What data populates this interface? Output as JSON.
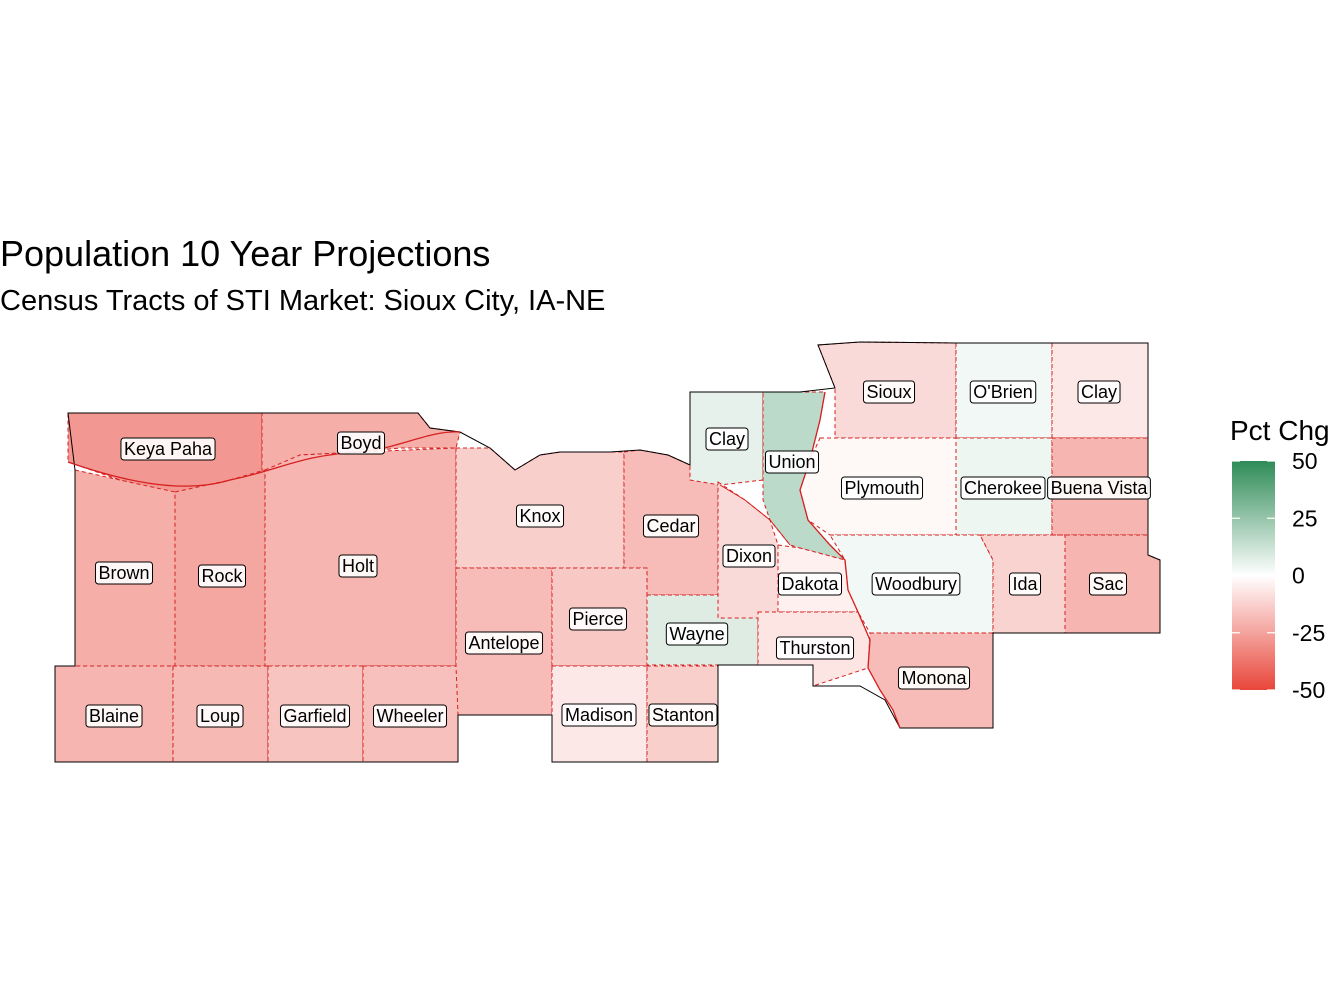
{
  "title": "Population 10 Year Projections",
  "subtitle": "Census Tracts of STI Market: Sioux City, IA-NE",
  "legend": {
    "title": "Pct Chg",
    "breaks": [
      50,
      25,
      0,
      -25,
      -50
    ],
    "colors": {
      "high": "#2e8b57",
      "mid": "#ffffff",
      "low": "#e8463a"
    }
  },
  "counties": [
    {
      "name": "Keya Paha",
      "pct": -28
    },
    {
      "name": "Boyd",
      "pct": -22
    },
    {
      "name": "Brown",
      "pct": -22
    },
    {
      "name": "Rock",
      "pct": -24
    },
    {
      "name": "Holt",
      "pct": -20
    },
    {
      "name": "Blaine",
      "pct": -20
    },
    {
      "name": "Loup",
      "pct": -19
    },
    {
      "name": "Garfield",
      "pct": -16
    },
    {
      "name": "Wheeler",
      "pct": -17
    },
    {
      "name": "Knox",
      "pct": -13
    },
    {
      "name": "Antelope",
      "pct": -18
    },
    {
      "name": "Cedar",
      "pct": -18
    },
    {
      "name": "Pierce",
      "pct": -15
    },
    {
      "name": "Madison",
      "pct": -6
    },
    {
      "name": "Stanton",
      "pct": -13
    },
    {
      "name": "Wayne",
      "pct": 8
    },
    {
      "name": "Clay",
      "pct": 6
    },
    {
      "name": "Union",
      "pct": 16
    },
    {
      "name": "Dixon",
      "pct": -10
    },
    {
      "name": "Dakota",
      "pct": -4
    },
    {
      "name": "Thurston",
      "pct": -7
    },
    {
      "name": "Sioux",
      "pct": -10
    },
    {
      "name": "O'Brien",
      "pct": 3
    },
    {
      "name": "Clay",
      "pct": -6
    },
    {
      "name": "Plymouth",
      "pct": -2
    },
    {
      "name": "Cherokee",
      "pct": 4
    },
    {
      "name": "Buena Vista",
      "pct": -20
    },
    {
      "name": "Woodbury",
      "pct": 3
    },
    {
      "name": "Ida",
      "pct": -12
    },
    {
      "name": "Sac",
      "pct": -20
    },
    {
      "name": "Monona",
      "pct": -18
    }
  ]
}
